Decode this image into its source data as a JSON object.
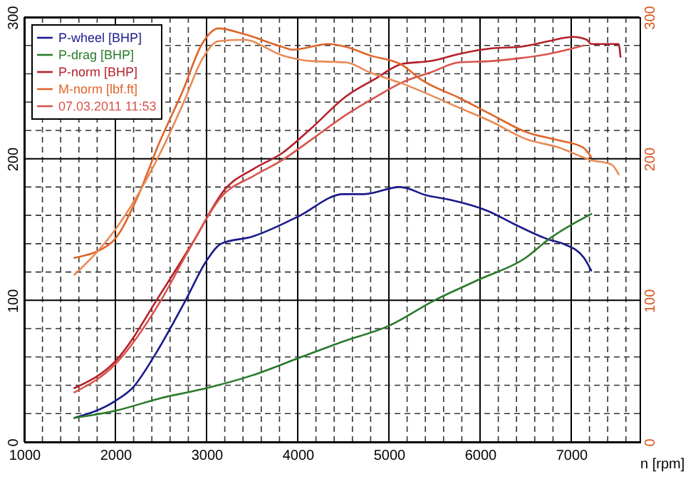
{
  "chart_data": {
    "type": "line",
    "xlabel": "n [rpm]",
    "xlim": [
      1000,
      7750
    ],
    "xticks": [
      1000,
      {
        "value": 1200,
        "label": null
      },
      {
        "value": 1400,
        "label": null
      },
      {
        "value": 1600,
        "label": null
      },
      {
        "value": 1800,
        "label": null
      },
      2000,
      {
        "value": 2200,
        "label": null
      },
      {
        "value": 2400,
        "label": null
      },
      {
        "value": 2600,
        "label": null
      },
      {
        "value": 2800,
        "label": null
      },
      3000,
      {
        "value": 3200,
        "label": null
      },
      {
        "value": 3400,
        "label": null
      },
      {
        "value": 3600,
        "label": null
      },
      {
        "value": 3800,
        "label": null
      },
      4000,
      {
        "value": 4200,
        "label": null
      },
      {
        "value": 4400,
        "label": null
      },
      {
        "value": 4600,
        "label": null
      },
      {
        "value": 4800,
        "label": null
      },
      5000,
      {
        "value": 5200,
        "label": null
      },
      {
        "value": 5400,
        "label": null
      },
      {
        "value": 5600,
        "label": null
      },
      {
        "value": 5800,
        "label": null
      },
      6000,
      {
        "value": 6200,
        "label": null
      },
      {
        "value": 6400,
        "label": null
      },
      {
        "value": 6600,
        "label": null
      },
      {
        "value": 6800,
        "label": null
      },
      7000,
      {
        "value": 7200,
        "label": null
      },
      {
        "value": 7400,
        "label": null
      },
      {
        "value": 7600,
        "label": null
      }
    ],
    "ylim": [
      0,
      300
    ],
    "yticks": [
      0,
      {
        "value": 20,
        "label": null
      },
      {
        "value": 40,
        "label": null
      },
      {
        "value": 60,
        "label": null
      },
      {
        "value": 80,
        "label": null
      },
      100,
      {
        "value": 120,
        "label": null
      },
      {
        "value": 140,
        "label": null
      },
      {
        "value": 160,
        "label": null
      },
      {
        "value": 180,
        "label": null
      },
      200,
      {
        "value": 220,
        "label": null
      },
      {
        "value": 240,
        "label": null
      },
      {
        "value": 260,
        "label": null
      },
      {
        "value": 280,
        "label": null
      },
      300
    ],
    "y2lim": [
      0,
      300
    ],
    "y2ticks": [
      0,
      100,
      200,
      300
    ],
    "grid": true,
    "legend": "top left",
    "series": [
      {
        "name": "P-wheel [BHP]",
        "color": "#1a1a8c",
        "x": [
          1550,
          2000,
          2200,
          2430,
          2770,
          3000,
          3160,
          3500,
          4000,
          4500,
          4730,
          5120,
          5420,
          5670,
          6090,
          6400,
          6750,
          6910,
          7140,
          7220
        ],
        "values": [
          17,
          29,
          39,
          61,
          100,
          128,
          140,
          145,
          159,
          175,
          175,
          180,
          174,
          171,
          163,
          153,
          143,
          140,
          130,
          121
        ]
      },
      {
        "name": "P-drag [BHP]",
        "color": "#2a7a2a",
        "x": [
          1550,
          2000,
          2500,
          3000,
          3500,
          4000,
          4500,
          5000,
          5500,
          6000,
          6500,
          6750,
          7220
        ],
        "values": [
          17,
          22,
          31,
          38,
          47,
          59,
          71,
          82,
          100,
          115,
          130,
          143,
          161
        ]
      },
      {
        "name": "P-norm [BHP]",
        "color": "#b5202a",
        "x": [
          1550,
          2000,
          2500,
          2850,
          3210,
          3520,
          3830,
          4140,
          4530,
          4840,
          5150,
          5460,
          5770,
          6130,
          6440,
          6750,
          7020,
          7170,
          7220,
          7520,
          7540
        ],
        "values": [
          38,
          57,
          105,
          141,
          179,
          193,
          204,
          221,
          244,
          256,
          267,
          269,
          274,
          278,
          279,
          283,
          286,
          284,
          281,
          281,
          272
        ]
      },
      {
        "name": "M-norm [lbf.ft]",
        "color": "#e0652a",
        "axis": "y2",
        "x": [
          1550,
          1960,
          2230,
          2480,
          2740,
          2950,
          3130,
          3410,
          3830,
          3940,
          4340,
          4530,
          4790,
          5150,
          5350,
          5770,
          6130,
          6500,
          6860,
          7130,
          7220
        ],
        "values": [
          130,
          141,
          171,
          211,
          248,
          281,
          292,
          288,
          279,
          277,
          281,
          279,
          273,
          266,
          256,
          243,
          231,
          219,
          213,
          208,
          201
        ]
      },
      {
        "name": "07.03.2011 11:53",
        "color": "#d9534a",
        "x": [
          1550,
          2000,
          2500,
          2800,
          3160,
          3520,
          3830,
          4140,
          4530,
          4840,
          5150,
          5460,
          5770,
          6130,
          6440,
          6750,
          7020,
          7140
        ],
        "values": [
          35,
          55,
          100,
          135,
          173,
          188,
          199,
          213,
          231,
          243,
          254,
          261,
          268,
          269,
          271,
          274,
          278,
          280
        ]
      },
      {
        "color": "#e98a55",
        "axis": "y2",
        "x": [
          1550,
          2000,
          2500,
          2750,
          2950,
          3130,
          3410,
          3830,
          4140,
          4530,
          4790,
          5150,
          5770,
          6130,
          6500,
          6860,
          7220,
          7440,
          7520
        ],
        "values": [
          118,
          150,
          205,
          240,
          270,
          283,
          284,
          273,
          269,
          268,
          261,
          253,
          236,
          226,
          214,
          208,
          199,
          196,
          189
        ]
      }
    ]
  }
}
